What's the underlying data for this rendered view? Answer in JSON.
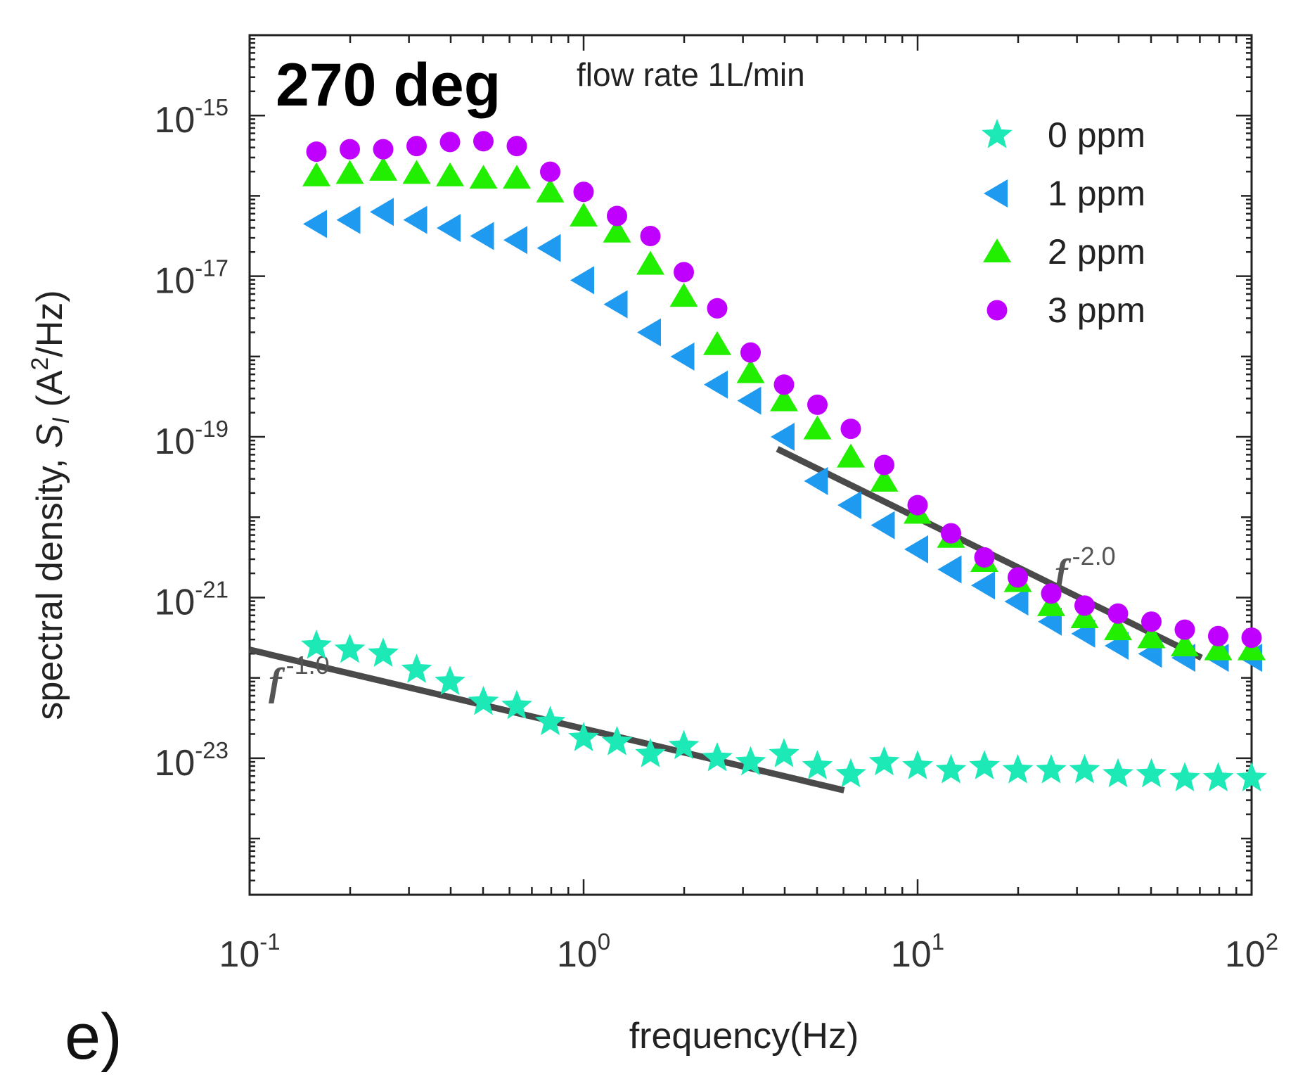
{
  "chart_data": {
    "type": "scatter",
    "xscale": "log",
    "yscale": "log",
    "xlim": [
      0.1,
      100
    ],
    "ylim_log10": [
      -24.7,
      -14.0
    ],
    "title": "270 deg",
    "subtitle": "flow rate 1L/min",
    "panel_label": "e)",
    "xlabel": "frequency(Hz)",
    "ylabel_prefix": "spectral density, ",
    "ylabel_symbol": "S",
    "ylabel_subscript": "I",
    "ylabel_open": " (A",
    "ylabel_sup": "2",
    "ylabel_close": "/Hz)",
    "x_ticks": [
      {
        "base": "10",
        "exp": "-1",
        "value_log10": -1
      },
      {
        "base": "10",
        "exp": "0",
        "value_log10": 0
      },
      {
        "base": "10",
        "exp": "1",
        "value_log10": 1
      },
      {
        "base": "10",
        "exp": "2",
        "value_log10": 2
      }
    ],
    "y_ticks": [
      {
        "base": "10",
        "exp": "-15",
        "value_log10": -15
      },
      {
        "base": "10",
        "exp": "-17",
        "value_log10": -17
      },
      {
        "base": "10",
        "exp": "-19",
        "value_log10": -19
      },
      {
        "base": "10",
        "exp": "-21",
        "value_log10": -21
      },
      {
        "base": "10",
        "exp": "-23",
        "value_log10": -23
      }
    ],
    "x_log10": [
      -0.8,
      -0.7,
      -0.6,
      -0.5,
      -0.4,
      -0.3,
      -0.2,
      -0.1,
      0.0,
      0.1,
      0.2,
      0.3,
      0.4,
      0.5,
      0.6,
      0.7,
      0.8,
      0.9,
      1.0,
      1.1,
      1.2,
      1.3,
      1.4,
      1.5,
      1.6,
      1.7,
      1.8,
      1.9,
      2.0
    ],
    "series": [
      {
        "name": "0 ppm",
        "marker": "star",
        "color": "#1de9b6",
        "y_log10": [
          -21.6,
          -21.65,
          -21.7,
          -21.9,
          -22.05,
          -22.3,
          -22.35,
          -22.55,
          -22.75,
          -22.8,
          -22.95,
          -22.85,
          -23.0,
          -23.05,
          -22.95,
          -23.1,
          -23.2,
          -23.05,
          -23.1,
          -23.15,
          -23.1,
          -23.15,
          -23.15,
          -23.15,
          -23.2,
          -23.2,
          -23.25,
          -23.25,
          -23.25
        ]
      },
      {
        "name": "1 ppm",
        "marker": "triangle-left",
        "color": "#1e9bf0",
        "y_log10": [
          -16.35,
          -16.3,
          -16.2,
          -16.3,
          -16.4,
          -16.5,
          -16.55,
          -16.65,
          -17.05,
          -17.35,
          -17.7,
          -18.0,
          -18.35,
          -18.55,
          -19.0,
          -19.55,
          -19.85,
          -20.1,
          -20.4,
          -20.65,
          -20.85,
          -21.05,
          -21.3,
          -21.45,
          -21.6,
          -21.7,
          -21.75,
          -21.75,
          -21.75
        ]
      },
      {
        "name": "2 ppm",
        "marker": "triangle-up",
        "color": "#22ee00",
        "y_log10": [
          -15.75,
          -15.72,
          -15.68,
          -15.72,
          -15.75,
          -15.78,
          -15.78,
          -15.95,
          -16.25,
          -16.45,
          -16.85,
          -17.25,
          -17.85,
          -18.2,
          -18.55,
          -18.9,
          -19.25,
          -19.55,
          -19.95,
          -20.25,
          -20.55,
          -20.8,
          -21.1,
          -21.25,
          -21.4,
          -21.5,
          -21.6,
          -21.65,
          -21.65
        ]
      },
      {
        "name": "3 ppm",
        "marker": "circle",
        "color": "#c000ff",
        "y_log10": [
          -15.45,
          -15.42,
          -15.42,
          -15.38,
          -15.33,
          -15.32,
          -15.38,
          -15.7,
          -15.95,
          -16.25,
          -16.5,
          -16.95,
          -17.4,
          -17.95,
          -18.35,
          -18.6,
          -18.9,
          -19.35,
          -19.85,
          -20.2,
          -20.5,
          -20.75,
          -20.95,
          -21.1,
          -21.2,
          -21.3,
          -21.4,
          -21.48,
          -21.5
        ]
      }
    ],
    "fit_lines": [
      {
        "label_f": "f",
        "label_exp": "-1.0",
        "x_log10": [
          -1.0,
          0.78
        ],
        "y_log10": [
          -21.65,
          -23.4
        ]
      },
      {
        "label_f": "f",
        "label_exp": "-2.0",
        "x_log10": [
          0.58,
          1.85
        ],
        "y_log10": [
          -19.15,
          -21.75
        ]
      }
    ],
    "legend_position": "top-right",
    "colors": {
      "fit_line": "#4a4a4a",
      "axis": "#222222"
    }
  }
}
